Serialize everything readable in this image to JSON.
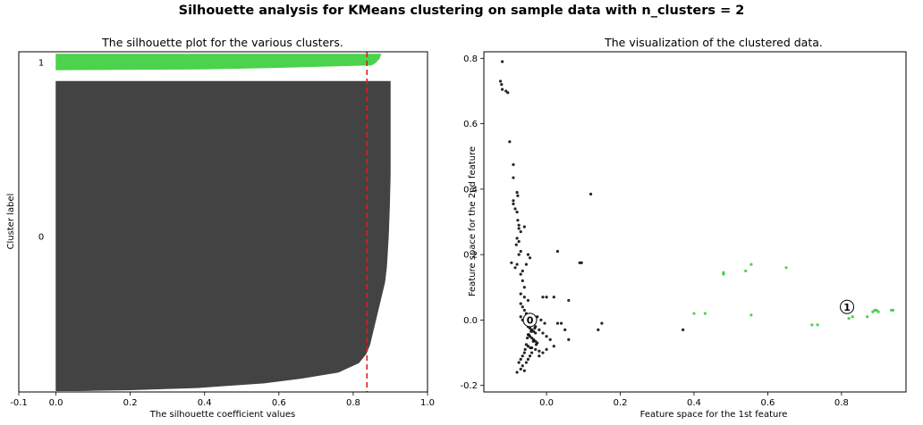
{
  "suptitle": "Silhouette analysis for KMeans clustering on sample data with n_clusters = 2",
  "chart_data": [
    {
      "type": "area",
      "title": "The silhouette plot for the various clusters.",
      "xlabel": "The silhouette coefficient values",
      "ylabel": "Cluster label",
      "xlim": [
        -0.1,
        1.0
      ],
      "xticks": [
        "-0.1",
        "0.0",
        "0.2",
        "0.4",
        "0.6",
        "0.8",
        "1.0"
      ],
      "xtick_values": [
        -0.1,
        0.0,
        0.2,
        0.4,
        0.6,
        0.8,
        1.0
      ],
      "ylim": [
        0,
        300
      ],
      "cluster_labels": [
        "0",
        "1"
      ],
      "average_silhouette": 0.837,
      "average_line_color": "#e41a1c",
      "clusters": [
        {
          "label": "0",
          "color": "#434343",
          "y_start": 1,
          "y_end": 274,
          "profile": [
            [
              0.0,
              0.9
            ],
            [
              0.1,
              0.9
            ],
            [
              0.2,
              0.9
            ],
            [
              0.3,
              0.9
            ],
            [
              0.4,
              0.898
            ],
            [
              0.5,
              0.895
            ],
            [
              0.6,
              0.89
            ],
            [
              0.65,
              0.885
            ],
            [
              0.7,
              0.875
            ],
            [
              0.75,
              0.865
            ],
            [
              0.8,
              0.855
            ],
            [
              0.85,
              0.845
            ],
            [
              0.88,
              0.835
            ],
            [
              0.91,
              0.815
            ],
            [
              0.94,
              0.76
            ],
            [
              0.96,
              0.66
            ],
            [
              0.975,
              0.56
            ],
            [
              0.99,
              0.38
            ],
            [
              0.997,
              0.2
            ],
            [
              1.0,
              0.06
            ]
          ]
        },
        {
          "label": "1",
          "color": "#4cd24c",
          "y_start": 284,
          "y_end": 298,
          "profile": [
            [
              0.0,
              0.875
            ],
            [
              0.3,
              0.87
            ],
            [
              0.55,
              0.86
            ],
            [
              0.7,
              0.85
            ],
            [
              0.85,
              0.6
            ],
            [
              0.95,
              0.4
            ],
            [
              1.0,
              0.0
            ]
          ]
        }
      ]
    },
    {
      "type": "scatter",
      "title": "The visualization of the clustered data.",
      "xlabel": "Feature space for the 1st feature",
      "ylabel": "Feature space for the 2nd feature",
      "xlim": [
        -0.17,
        0.975
      ],
      "ylim": [
        -0.22,
        0.82
      ],
      "xticks": [
        "0.0",
        "0.2",
        "0.4",
        "0.6",
        "0.8"
      ],
      "xtick_values": [
        0.0,
        0.2,
        0.4,
        0.6,
        0.8
      ],
      "yticks": [
        "-0.2",
        "0.0",
        "0.2",
        "0.4",
        "0.6",
        "0.8"
      ],
      "ytick_values": [
        -0.2,
        0.0,
        0.2,
        0.4,
        0.6,
        0.8
      ],
      "series": [
        {
          "cluster": "0",
          "color": "#000000",
          "points": [
            [
              -0.12,
              0.79
            ],
            [
              -0.125,
              0.73
            ],
            [
              -0.122,
              0.72
            ],
            [
              -0.11,
              0.7
            ],
            [
              -0.105,
              0.695
            ],
            [
              -0.12,
              0.705
            ],
            [
              -0.1,
              0.545
            ],
            [
              -0.09,
              0.475
            ],
            [
              -0.09,
              0.435
            ],
            [
              -0.08,
              0.39
            ],
            [
              -0.078,
              0.38
            ],
            [
              -0.09,
              0.365
            ],
            [
              -0.09,
              0.355
            ],
            [
              -0.085,
              0.34
            ],
            [
              -0.08,
              0.33
            ],
            [
              -0.078,
              0.305
            ],
            [
              -0.075,
              0.29
            ],
            [
              -0.075,
              0.28
            ],
            [
              -0.07,
              0.27
            ],
            [
              -0.08,
              0.25
            ],
            [
              -0.075,
              0.24
            ],
            [
              -0.082,
              0.23
            ],
            [
              -0.07,
              0.21
            ],
            [
              -0.075,
              0.2
            ],
            [
              -0.095,
              0.175
            ],
            [
              -0.08,
              0.17
            ],
            [
              -0.085,
              0.16
            ],
            [
              -0.06,
              0.285
            ],
            [
              -0.05,
              0.2
            ],
            [
              -0.045,
              0.19
            ],
            [
              -0.055,
              0.17
            ],
            [
              -0.065,
              0.15
            ],
            [
              -0.07,
              0.14
            ],
            [
              -0.065,
              0.12
            ],
            [
              -0.06,
              0.1
            ],
            [
              -0.07,
              0.08
            ],
            [
              -0.06,
              0.07
            ],
            [
              -0.05,
              0.06
            ],
            [
              0.03,
              0.21
            ],
            [
              0.09,
              0.175
            ],
            [
              0.095,
              0.175
            ],
            [
              0.12,
              0.385
            ],
            [
              0.0,
              0.07
            ],
            [
              -0.01,
              0.07
            ],
            [
              0.02,
              0.07
            ],
            [
              0.06,
              0.06
            ],
            [
              -0.07,
              0.05
            ],
            [
              -0.065,
              0.04
            ],
            [
              -0.06,
              0.03
            ],
            [
              -0.055,
              0.02
            ],
            [
              -0.07,
              0.01
            ],
            [
              -0.065,
              0.0
            ],
            [
              -0.06,
              -0.005
            ],
            [
              -0.055,
              -0.01
            ],
            [
              -0.05,
              -0.02
            ],
            [
              -0.045,
              -0.025
            ],
            [
              -0.04,
              -0.03
            ],
            [
              -0.035,
              -0.035
            ],
            [
              -0.03,
              -0.04
            ],
            [
              -0.05,
              -0.045
            ],
            [
              -0.045,
              -0.05
            ],
            [
              -0.04,
              -0.055
            ],
            [
              -0.035,
              -0.06
            ],
            [
              -0.03,
              -0.065
            ],
            [
              -0.025,
              -0.07
            ],
            [
              -0.055,
              -0.075
            ],
            [
              -0.05,
              -0.08
            ],
            [
              -0.04,
              -0.085
            ],
            [
              -0.03,
              -0.09
            ],
            [
              -0.02,
              -0.095
            ],
            [
              -0.06,
              -0.1
            ],
            [
              -0.065,
              -0.11
            ],
            [
              -0.07,
              -0.12
            ],
            [
              -0.075,
              -0.13
            ],
            [
              -0.065,
              -0.14
            ],
            [
              -0.07,
              -0.15
            ],
            [
              -0.08,
              -0.16
            ],
            [
              -0.06,
              -0.155
            ],
            [
              -0.055,
              -0.13
            ],
            [
              -0.05,
              -0.12
            ],
            [
              -0.045,
              -0.11
            ],
            [
              -0.04,
              -0.1
            ],
            [
              -0.03,
              -0.02
            ],
            [
              -0.02,
              -0.03
            ],
            [
              -0.01,
              -0.04
            ],
            [
              0.0,
              -0.05
            ],
            [
              0.01,
              -0.06
            ],
            [
              -0.025,
              0.01
            ],
            [
              -0.015,
              0.0
            ],
            [
              -0.005,
              -0.01
            ],
            [
              0.03,
              -0.01
            ],
            [
              0.04,
              -0.01
            ],
            [
              0.05,
              -0.03
            ],
            [
              0.06,
              -0.06
            ],
            [
              0.02,
              -0.08
            ],
            [
              0.0,
              -0.09
            ],
            [
              -0.01,
              -0.1
            ],
            [
              -0.02,
              -0.11
            ],
            [
              0.15,
              -0.01
            ],
            [
              0.14,
              -0.03
            ],
            [
              0.37,
              -0.03
            ],
            [
              -0.045,
              0.005
            ],
            [
              -0.038,
              -0.015
            ],
            [
              -0.032,
              -0.025
            ],
            [
              -0.042,
              -0.035
            ],
            [
              -0.048,
              -0.045
            ],
            [
              -0.052,
              -0.055
            ],
            [
              -0.036,
              -0.065
            ],
            [
              -0.028,
              -0.075
            ],
            [
              -0.044,
              -0.085
            ],
            [
              -0.058,
              -0.09
            ]
          ]
        },
        {
          "cluster": "1",
          "color": "#2ecc2e",
          "points": [
            [
              0.4,
              0.02
            ],
            [
              0.43,
              0.02
            ],
            [
              0.48,
              0.14
            ],
            [
              0.48,
              0.145
            ],
            [
              0.54,
              0.15
            ],
            [
              0.555,
              0.17
            ],
            [
              0.555,
              0.015
            ],
            [
              0.65,
              0.16
            ],
            [
              0.72,
              -0.015
            ],
            [
              0.735,
              -0.015
            ],
            [
              0.82,
              0.005
            ],
            [
              0.83,
              0.01
            ],
            [
              0.87,
              0.01
            ],
            [
              0.885,
              0.025
            ],
            [
              0.89,
              0.03
            ],
            [
              0.895,
              0.03
            ],
            [
              0.9,
              0.025
            ],
            [
              0.94,
              0.03
            ],
            [
              0.935,
              0.03
            ]
          ]
        }
      ],
      "centers": [
        {
          "label": "0",
          "x": -0.045,
          "y": 0.0
        },
        {
          "label": "1",
          "x": 0.815,
          "y": 0.04
        }
      ]
    }
  ]
}
